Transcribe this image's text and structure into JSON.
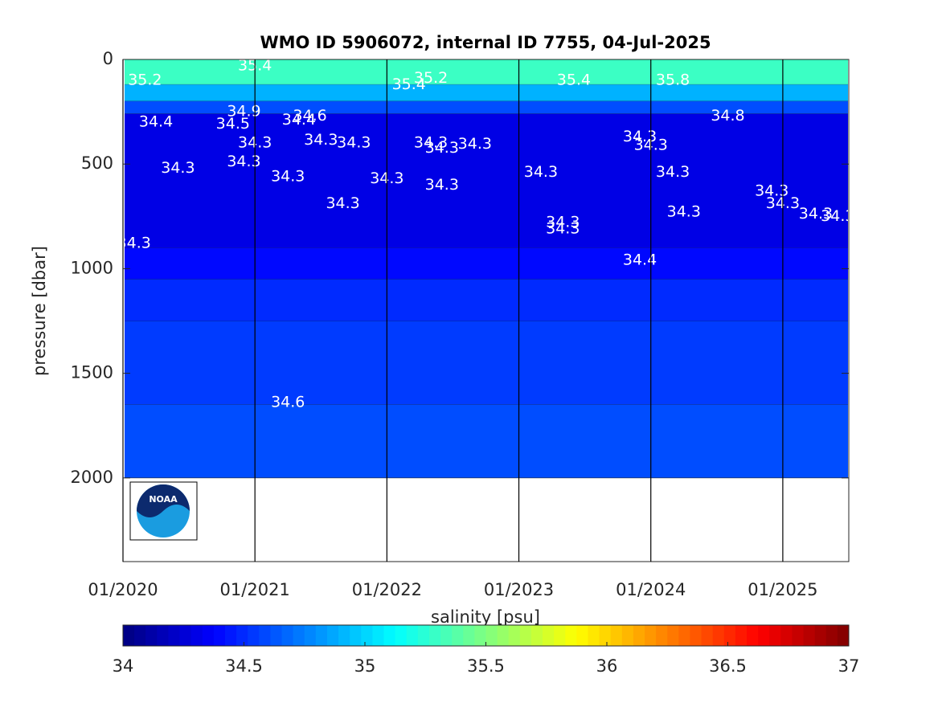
{
  "chart_data": {
    "type": "contour",
    "title": "WMO ID 5906072, internal ID 7755, 04-Jul-2025",
    "ylabel": "pressure [dbar]",
    "colorbar_label": "salinity [psu]",
    "logo_text": "NOAA",
    "xlim": [
      "01/2020",
      "07/2025"
    ],
    "xticks": [
      "01/2020",
      "01/2021",
      "01/2022",
      "01/2023",
      "01/2024",
      "01/2025"
    ],
    "x_grid": true,
    "ylim": [
      0,
      2400
    ],
    "y_reversed": true,
    "yticks": [
      0,
      500,
      1000,
      1500,
      2000
    ],
    "colormap": "jet",
    "clim": [
      34,
      37
    ],
    "cticks": [
      34,
      34.5,
      35,
      35.5,
      36,
      36.5,
      37
    ],
    "bands": [
      {
        "value": 35.3,
        "top": 0,
        "bottom": 120
      },
      {
        "value": 34.9,
        "top": 120,
        "bottom": 200
      },
      {
        "value": 34.6,
        "top": 200,
        "bottom": 260
      },
      {
        "value": 34.3,
        "top": 260,
        "bottom": 900
      },
      {
        "value": 34.4,
        "top": 900,
        "bottom": 1050
      },
      {
        "value": 34.5,
        "top": 1050,
        "bottom": 1250
      },
      {
        "value": 34.55,
        "top": 1250,
        "bottom": 1650
      },
      {
        "value": 34.6,
        "top": 1650,
        "bottom": 2000
      }
    ],
    "contour_labels": [
      {
        "x": "03/2020",
        "y": 100,
        "value": 35.2
      },
      {
        "x": "01/2021",
        "y": 30,
        "value": 35.4
      },
      {
        "x": "03/2022",
        "y": 120,
        "value": 35.4
      },
      {
        "x": "05/2022",
        "y": 90,
        "value": 35.2
      },
      {
        "x": "06/2023",
        "y": 100,
        "value": 35.4
      },
      {
        "x": "03/2024",
        "y": 100,
        "value": 35.8
      },
      {
        "x": "04/2020",
        "y": 300,
        "value": 34.4
      },
      {
        "x": "12/2020",
        "y": 250,
        "value": 34.9
      },
      {
        "x": "11/2020",
        "y": 310,
        "value": 34.5
      },
      {
        "x": "05/2021",
        "y": 290,
        "value": 34.4
      },
      {
        "x": "06/2021",
        "y": 270,
        "value": 34.6
      },
      {
        "x": "08/2024",
        "y": 270,
        "value": 34.8
      },
      {
        "x": "06/2020",
        "y": 520,
        "value": 34.3
      },
      {
        "x": "02/2020",
        "y": 880,
        "value": 34.3
      },
      {
        "x": "01/2021",
        "y": 400,
        "value": 34.3
      },
      {
        "x": "12/2020",
        "y": 490,
        "value": 34.3
      },
      {
        "x": "07/2021",
        "y": 385,
        "value": 34.3
      },
      {
        "x": "04/2021",
        "y": 560,
        "value": 34.3
      },
      {
        "x": "09/2021",
        "y": 690,
        "value": 34.3
      },
      {
        "x": "10/2021",
        "y": 400,
        "value": 34.3
      },
      {
        "x": "01/2022",
        "y": 570,
        "value": 34.3
      },
      {
        "x": "05/2022",
        "y": 400,
        "value": 34.3
      },
      {
        "x": "06/2022",
        "y": 425,
        "value": 34.3
      },
      {
        "x": "06/2022",
        "y": 600,
        "value": 34.3
      },
      {
        "x": "09/2022",
        "y": 405,
        "value": 34.3
      },
      {
        "x": "03/2023",
        "y": 540,
        "value": 34.3
      },
      {
        "x": "05/2023",
        "y": 780,
        "value": 34.3
      },
      {
        "x": "05/2023",
        "y": 810,
        "value": 34.3
      },
      {
        "x": "12/2023",
        "y": 370,
        "value": 34.3
      },
      {
        "x": "01/2024",
        "y": 410,
        "value": 34.3
      },
      {
        "x": "12/2023",
        "y": 960,
        "value": 34.4
      },
      {
        "x": "03/2024",
        "y": 540,
        "value": 34.3
      },
      {
        "x": "04/2024",
        "y": 730,
        "value": 34.3
      },
      {
        "x": "12/2024",
        "y": 630,
        "value": 34.3
      },
      {
        "x": "01/2025",
        "y": 690,
        "value": 34.3
      },
      {
        "x": "04/2025",
        "y": 740,
        "value": 34.3
      },
      {
        "x": "06/2025",
        "y": 750,
        "value": 34.3
      },
      {
        "x": "04/2021",
        "y": 1640,
        "value": 34.6
      }
    ]
  }
}
